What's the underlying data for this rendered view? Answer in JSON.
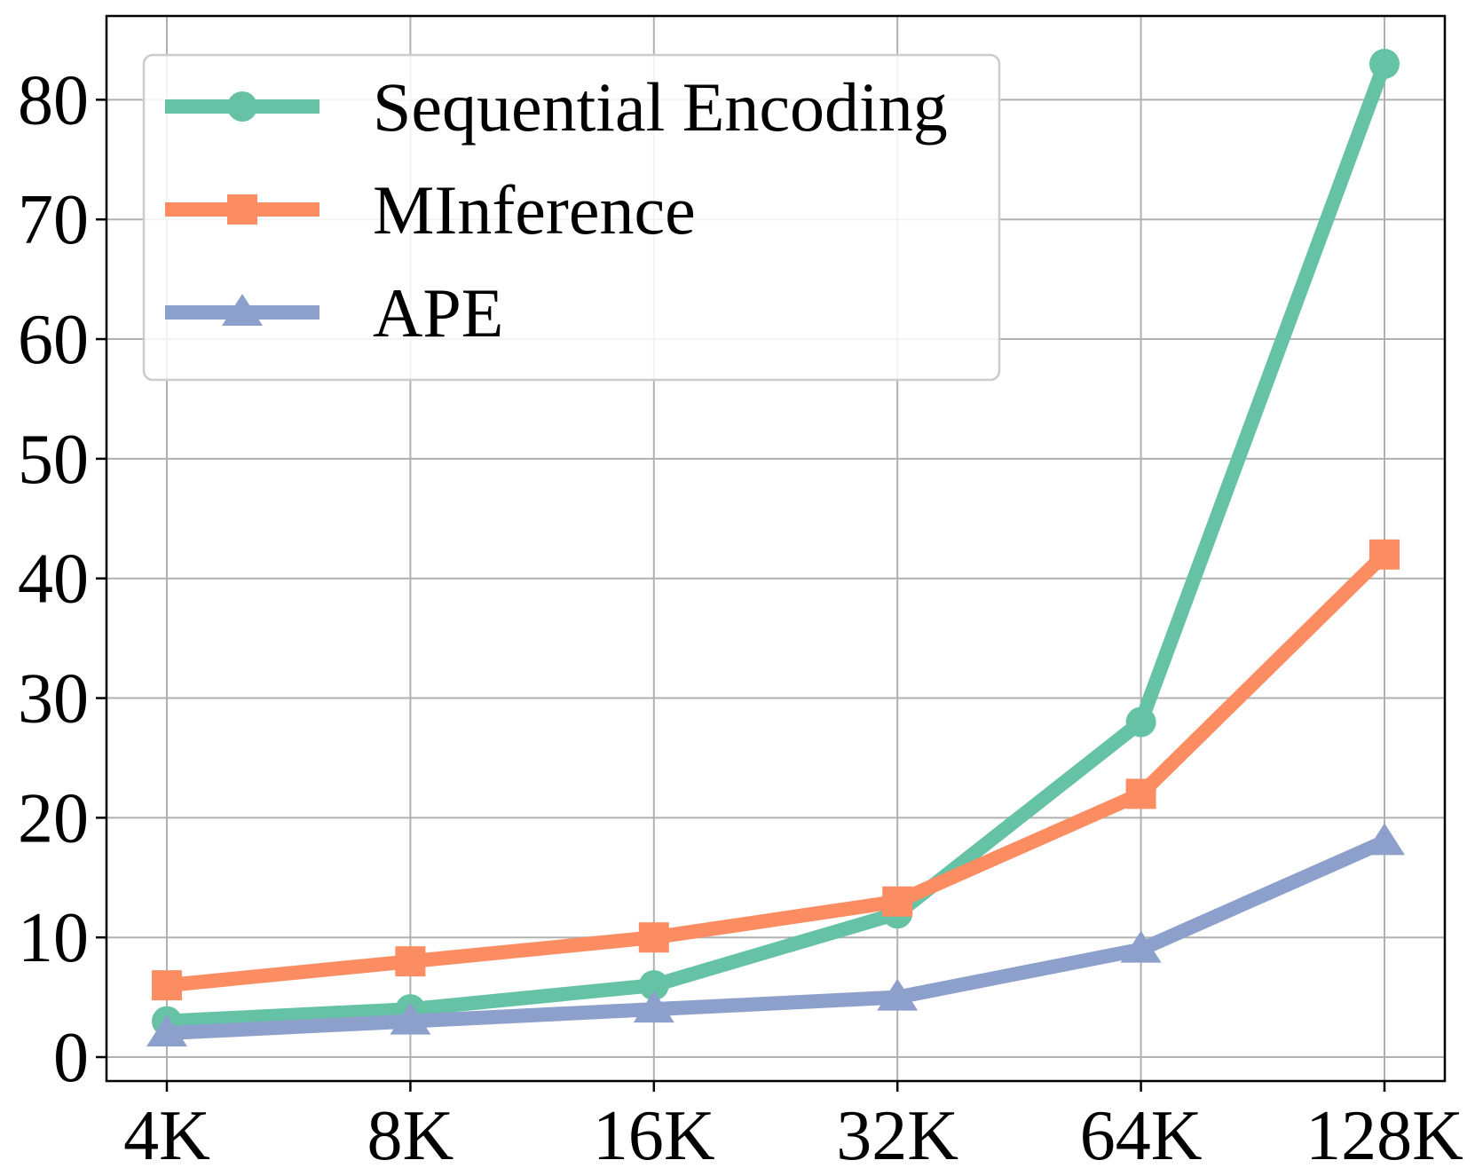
{
  "chart_data": {
    "type": "line",
    "title": "",
    "xlabel": "",
    "ylabel": "",
    "categories": [
      "4K",
      "8K",
      "16K",
      "32K",
      "64K",
      "128K"
    ],
    "ylim": [
      -2,
      87
    ],
    "yticks": [
      0,
      10,
      20,
      30,
      40,
      50,
      60,
      70,
      80
    ],
    "grid": true,
    "legend_position": "top-left",
    "series": [
      {
        "name": "Sequential Encoding",
        "color": "#66c2a5",
        "marker": "circle",
        "values": [
          3,
          4,
          6,
          12,
          28,
          83
        ]
      },
      {
        "name": "MInference",
        "color": "#fc8d62",
        "marker": "square",
        "values": [
          6,
          8,
          10,
          13,
          22,
          42
        ]
      },
      {
        "name": "APE",
        "color": "#8da0cb",
        "marker": "triangle",
        "values": [
          2,
          3,
          4,
          5,
          9,
          18
        ]
      }
    ]
  }
}
